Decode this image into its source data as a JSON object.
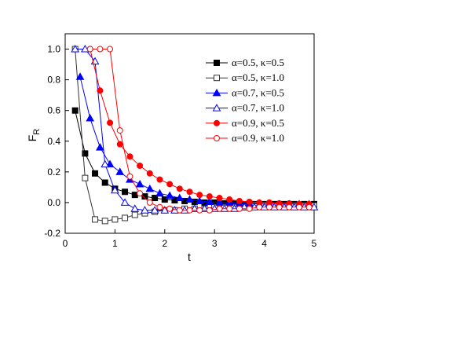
{
  "chart_data": {
    "type": "line",
    "x_label": "t",
    "y_label": "F",
    "y_label_subscript": "R",
    "xlim": [
      0,
      5
    ],
    "ylim": [
      -0.2,
      1.1
    ],
    "xticks": [
      0,
      1,
      2,
      3,
      4,
      5
    ],
    "yticks": [
      -0.2,
      {
        "value": 0,
        "label": "0.0"
      },
      0.2,
      0.4,
      0.6,
      0.8,
      {
        "value": 1,
        "label": "1.0"
      }
    ],
    "legend": "upper right",
    "series": [
      {
        "name": "α=0.5, κ=0.5",
        "color": "#000000",
        "marker": "square",
        "filled": true,
        "x": [
          0.2,
          0.4,
          0.6,
          0.8,
          1.0,
          1.2,
          1.4,
          1.6,
          1.8,
          2.0,
          2.2,
          2.4,
          2.6,
          2.8,
          3.0,
          3.2,
          3.4,
          3.6,
          3.8,
          4.0,
          4.2,
          4.4,
          4.6,
          4.8,
          5.0
        ],
        "values": [
          0.6,
          0.32,
          0.19,
          0.13,
          0.09,
          0.07,
          0.05,
          0.04,
          0.03,
          0.02,
          0.015,
          0.01,
          0.005,
          0.0,
          0.0,
          -0.005,
          -0.005,
          -0.01,
          -0.01,
          -0.01,
          -0.01,
          -0.01,
          -0.01,
          -0.01,
          -0.01
        ]
      },
      {
        "name": "α=0.5, κ=1.0",
        "color": "#333333",
        "marker": "square",
        "filled": false,
        "x": [
          0.2,
          0.4,
          0.6,
          0.8,
          1.0,
          1.2,
          1.4,
          1.6,
          1.8,
          2.0,
          2.2,
          2.4,
          2.6,
          2.8,
          3.0,
          3.2,
          3.4,
          3.6,
          3.8,
          4.0,
          4.2,
          4.4,
          4.6,
          4.8,
          5.0
        ],
        "values": [
          1.0,
          0.16,
          -0.11,
          -0.12,
          -0.11,
          -0.1,
          -0.08,
          -0.07,
          -0.06,
          -0.05,
          -0.05,
          -0.04,
          -0.04,
          -0.04,
          -0.03,
          -0.03,
          -0.03,
          -0.03,
          -0.02,
          -0.02,
          -0.02,
          -0.02,
          -0.02,
          -0.02,
          -0.02
        ]
      },
      {
        "name": "α=0.7, κ=0.5",
        "color": "#0000ff",
        "marker": "triangle",
        "filled": true,
        "x": [
          0.3,
          0.5,
          0.7,
          0.9,
          1.1,
          1.3,
          1.5,
          1.7,
          1.9,
          2.1,
          2.3,
          2.5,
          2.7,
          2.9,
          3.1,
          3.3,
          3.5,
          3.7,
          3.9,
          4.1,
          4.3,
          4.5,
          4.7,
          4.9
        ],
        "values": [
          0.82,
          0.55,
          0.36,
          0.25,
          0.2,
          0.15,
          0.12,
          0.09,
          0.06,
          0.045,
          0.03,
          0.02,
          0.01,
          0.005,
          0.0,
          0.0,
          -0.005,
          -0.005,
          -0.01,
          -0.01,
          -0.01,
          -0.01,
          -0.01,
          -0.01
        ]
      },
      {
        "name": "α=0.7, κ=1.0",
        "color": "#0000ff",
        "marker": "triangle",
        "filled": false,
        "x": [
          0.2,
          0.4,
          0.6,
          0.8,
          1.0,
          1.2,
          1.4,
          1.6,
          1.8,
          2.0,
          2.2,
          2.4,
          2.6,
          2.8,
          3.0,
          3.2,
          3.4,
          3.6,
          3.8,
          4.0,
          4.2,
          4.4,
          4.6,
          4.8,
          5.0
        ],
        "values": [
          1.0,
          1.0,
          0.92,
          0.25,
          0.08,
          0.0,
          -0.04,
          -0.05,
          -0.05,
          -0.05,
          -0.05,
          -0.05,
          -0.04,
          -0.04,
          -0.04,
          -0.04,
          -0.04,
          -0.03,
          -0.03,
          -0.03,
          -0.03,
          -0.03,
          -0.03,
          -0.03,
          -0.03
        ]
      },
      {
        "name": "α=0.9, κ=0.5",
        "color": "#ff0000",
        "marker": "circle",
        "filled": true,
        "x": [
          0.5,
          0.7,
          0.9,
          1.1,
          1.3,
          1.5,
          1.7,
          1.9,
          2.1,
          2.3,
          2.5,
          2.7,
          2.9,
          3.1,
          3.3,
          3.5,
          3.7,
          3.9,
          4.1,
          4.3,
          4.5,
          4.7,
          4.9
        ],
        "values": [
          1.0,
          0.73,
          0.52,
          0.38,
          0.3,
          0.24,
          0.19,
          0.15,
          0.12,
          0.09,
          0.07,
          0.05,
          0.04,
          0.03,
          0.02,
          0.01,
          0.005,
          0.0,
          0.0,
          -0.005,
          -0.005,
          -0.01,
          -0.01
        ]
      },
      {
        "name": "α=0.9, κ=1.0",
        "color": "#ff0000",
        "marker": "circle",
        "filled": false,
        "x": [
          0.5,
          0.7,
          0.9,
          1.1,
          1.3,
          1.5,
          1.7,
          1.9,
          2.1,
          2.3,
          2.5,
          2.7,
          2.9,
          3.1,
          3.3,
          3.5,
          3.7,
          3.9,
          4.1,
          4.3,
          4.5,
          4.7,
          4.9
        ],
        "values": [
          1.0,
          1.0,
          1.0,
          0.47,
          0.17,
          0.06,
          0.0,
          -0.03,
          -0.04,
          -0.05,
          -0.05,
          -0.05,
          -0.05,
          -0.04,
          -0.04,
          -0.04,
          -0.04,
          -0.03,
          -0.03,
          -0.03,
          -0.03,
          -0.03,
          -0.03
        ]
      }
    ]
  }
}
